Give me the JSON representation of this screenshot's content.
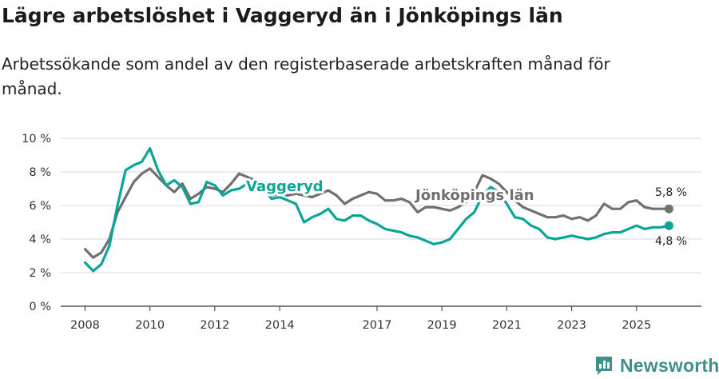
{
  "header": {
    "title": "Lägre arbetslöshet i Vaggeryd än i Jönköpings län",
    "subtitle": "Arbetssökande som andel av den registerbaserade arbetskraften månad för månad."
  },
  "brand": {
    "name": "Newsworthy",
    "icon": "newsworthy-logo-icon"
  },
  "colors": {
    "vaggeryd": "#0ba597",
    "lan": "#707070",
    "axis": "#333333",
    "grid": "#d9d9d9"
  },
  "chart_data": {
    "type": "line",
    "title": "Lägre arbetslöshet i Vaggeryd än i Jönköpings län",
    "subtitle": "Arbetssökande som andel av den registerbaserade arbetskraften månad för månad.",
    "xlabel": "",
    "ylabel": "",
    "xlim": [
      2007.25,
      2027.0
    ],
    "ylim": [
      0,
      10
    ],
    "grid": true,
    "x_ticks": [
      2008,
      2010,
      2012,
      2014,
      2017,
      2019,
      2021,
      2023,
      2025
    ],
    "x_tick_labels": [
      "2008",
      "2010",
      "2012",
      "2014",
      "2017",
      "2019",
      "2021",
      "2023",
      "2025"
    ],
    "y_ticks": [
      0,
      2,
      4,
      6,
      8,
      10
    ],
    "y_tick_labels": [
      "0 %",
      "2 %",
      "4 %",
      "6 %",
      "8 %",
      "10 %"
    ],
    "series": [
      {
        "name": "Jönköpings län",
        "label": "Jönköpings län",
        "end_label": "5,8 %",
        "x": [
          2008.0,
          2008.25,
          2008.5,
          2008.75,
          2009.0,
          2009.25,
          2009.5,
          2009.75,
          2010.0,
          2010.25,
          2010.5,
          2010.75,
          2011.0,
          2011.25,
          2011.5,
          2011.75,
          2012.0,
          2012.25,
          2012.5,
          2012.75,
          2013.0,
          2013.25,
          2013.5,
          2013.75,
          2014.0,
          2014.25,
          2014.5,
          2014.75,
          2015.0,
          2015.25,
          2015.5,
          2015.75,
          2016.0,
          2016.25,
          2016.5,
          2016.75,
          2017.0,
          2017.25,
          2017.5,
          2017.75,
          2018.0,
          2018.25,
          2018.5,
          2018.75,
          2019.0,
          2019.25,
          2019.5,
          2019.75,
          2020.0,
          2020.25,
          2020.5,
          2020.75,
          2021.0,
          2021.25,
          2021.5,
          2021.75,
          2022.0,
          2022.25,
          2022.5,
          2022.75,
          2023.0,
          2023.25,
          2023.5,
          2023.75,
          2024.0,
          2024.25,
          2024.5,
          2024.75,
          2025.0,
          2025.25,
          2025.5,
          2025.75,
          2026.0
        ],
        "values": [
          3.4,
          2.9,
          3.2,
          4.0,
          5.6,
          6.5,
          7.4,
          7.9,
          8.2,
          7.7,
          7.2,
          6.8,
          7.3,
          6.4,
          6.7,
          7.1,
          7.0,
          6.8,
          7.3,
          7.9,
          7.7,
          7.5,
          7.1,
          6.6,
          6.7,
          6.6,
          6.7,
          6.6,
          6.5,
          6.7,
          6.9,
          6.6,
          6.1,
          6.4,
          6.6,
          6.8,
          6.7,
          6.3,
          6.3,
          6.4,
          6.2,
          5.6,
          5.9,
          5.9,
          5.8,
          5.7,
          5.9,
          6.2,
          6.8,
          7.8,
          7.6,
          7.3,
          6.8,
          6.3,
          5.9,
          5.7,
          5.5,
          5.3,
          5.3,
          5.4,
          5.2,
          5.3,
          5.1,
          5.4,
          6.1,
          5.8,
          5.8,
          6.2,
          6.3,
          5.9,
          5.8,
          5.8,
          5.8
        ]
      },
      {
        "name": "Vaggeryd",
        "label": "Vaggeryd",
        "end_label": "4,8 %",
        "x": [
          2008.0,
          2008.25,
          2008.5,
          2008.75,
          2009.0,
          2009.25,
          2009.5,
          2009.75,
          2010.0,
          2010.25,
          2010.5,
          2010.75,
          2011.0,
          2011.25,
          2011.5,
          2011.75,
          2012.0,
          2012.25,
          2012.5,
          2012.75,
          2013.0,
          2013.25,
          2013.5,
          2013.75,
          2014.0,
          2014.25,
          2014.5,
          2014.75,
          2015.0,
          2015.25,
          2015.5,
          2015.75,
          2016.0,
          2016.25,
          2016.5,
          2016.75,
          2017.0,
          2017.25,
          2017.5,
          2017.75,
          2018.0,
          2018.25,
          2018.5,
          2018.75,
          2019.0,
          2019.25,
          2019.5,
          2019.75,
          2020.0,
          2020.25,
          2020.5,
          2020.75,
          2021.0,
          2021.25,
          2021.5,
          2021.75,
          2022.0,
          2022.25,
          2022.5,
          2022.75,
          2023.0,
          2023.25,
          2023.5,
          2023.75,
          2024.0,
          2024.25,
          2024.5,
          2024.75,
          2025.0,
          2025.25,
          2025.5,
          2025.75,
          2026.0
        ],
        "values": [
          2.6,
          2.1,
          2.5,
          3.6,
          6.0,
          8.1,
          8.4,
          8.6,
          9.4,
          8.1,
          7.2,
          7.5,
          7.1,
          6.1,
          6.2,
          7.4,
          7.2,
          6.6,
          6.9,
          7.0,
          7.3,
          7.2,
          7.0,
          6.4,
          6.5,
          6.3,
          6.1,
          5.0,
          5.3,
          5.5,
          5.8,
          5.2,
          5.1,
          5.4,
          5.4,
          5.1,
          4.9,
          4.6,
          4.5,
          4.4,
          4.2,
          4.1,
          3.9,
          3.7,
          3.8,
          4.0,
          4.6,
          5.2,
          5.6,
          6.6,
          7.1,
          6.8,
          6.1,
          5.3,
          5.2,
          4.8,
          4.6,
          4.1,
          4.0,
          4.1,
          4.2,
          4.1,
          4.0,
          4.1,
          4.3,
          4.4,
          4.4,
          4.6,
          4.8,
          4.6,
          4.7,
          4.7,
          4.8
        ]
      }
    ]
  }
}
